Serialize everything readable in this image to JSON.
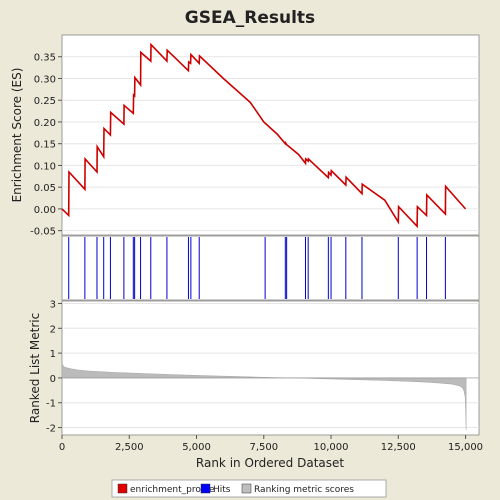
{
  "chart_data": [
    {
      "type": "line",
      "title": "GSEA_Results",
      "ylabel": "Enrichment Score (ES)",
      "xlim": [
        0,
        15500
      ],
      "ylim": [
        -0.06,
        0.4
      ],
      "yticks": [
        -0.05,
        0.0,
        0.05,
        0.1,
        0.15,
        0.2,
        0.25,
        0.3,
        0.35
      ],
      "ytick_labels": [
        "-0.05",
        "0.00",
        "0.05",
        "0.10",
        "0.15",
        "0.20",
        "0.25",
        "0.30",
        "0.35"
      ],
      "grid": true,
      "series": [
        {
          "name": "enrichment_profile",
          "color": "#cc0000",
          "x": [
            0,
            250,
            260,
            850,
            860,
            1300,
            1310,
            1550,
            1560,
            1800,
            1810,
            2300,
            2310,
            2650,
            2660,
            2700,
            2710,
            2920,
            2930,
            3300,
            3310,
            3900,
            3910,
            4700,
            4710,
            4780,
            4790,
            5100,
            5110,
            6000,
            7000,
            7500,
            8000,
            8300,
            8310,
            8350,
            8800,
            9050,
            9060,
            9150,
            9160,
            9900,
            9910,
            10000,
            10010,
            10550,
            10560,
            11150,
            11160,
            12000,
            12500,
            12510,
            13200,
            13210,
            13550,
            13560,
            14250,
            14260,
            15000
          ],
          "y": [
            0.0,
            -0.015,
            0.085,
            0.045,
            0.115,
            0.085,
            0.143,
            0.12,
            0.185,
            0.17,
            0.222,
            0.195,
            0.238,
            0.22,
            0.262,
            0.26,
            0.302,
            0.285,
            0.36,
            0.34,
            0.378,
            0.34,
            0.365,
            0.318,
            0.338,
            0.335,
            0.355,
            0.335,
            0.352,
            0.3,
            0.245,
            0.2,
            0.172,
            0.15,
            0.152,
            0.148,
            0.125,
            0.105,
            0.115,
            0.11,
            0.115,
            0.072,
            0.084,
            0.078,
            0.088,
            0.055,
            0.073,
            0.035,
            0.057,
            0.02,
            -0.03,
            0.005,
            -0.04,
            0.005,
            -0.015,
            0.032,
            -0.012,
            0.052,
            0.0
          ]
        }
      ]
    },
    {
      "type": "scatter",
      "series": [
        {
          "name": "Hits",
          "color": "#0000cc",
          "x": [
            250,
            850,
            1300,
            1550,
            1800,
            2300,
            2650,
            2700,
            2920,
            3300,
            3900,
            4700,
            4790,
            5100,
            7550,
            8300,
            8350,
            9050,
            9150,
            9900,
            10000,
            10550,
            11150,
            12500,
            13200,
            13550,
            14250
          ]
        }
      ]
    },
    {
      "type": "area",
      "ylabel": "Ranked List Metric",
      "xlabel": "Rank in Ordered Dataset",
      "xlim": [
        0,
        15500
      ],
      "ylim": [
        -2.3,
        3.1
      ],
      "xticks": [
        0,
        2500,
        5000,
        7500,
        10000,
        12500,
        15000
      ],
      "xtick_labels": [
        "0",
        "2,500",
        "5,000",
        "7,500",
        "10,000",
        "12,500",
        "15,000"
      ],
      "yticks": [
        -2,
        -1,
        0,
        1,
        2,
        3
      ],
      "ytick_labels": [
        "-2",
        "-1",
        "0",
        "1",
        "2",
        "3"
      ],
      "grid": true,
      "series": [
        {
          "name": "Ranking metric scores",
          "color": "#bbbbbb",
          "x": [
            0,
            30,
            100,
            300,
            600,
            1000,
            2000,
            3000,
            4000,
            5000,
            6000,
            7000,
            8000,
            8600,
            9000,
            10000,
            11000,
            12000,
            13000,
            13500,
            14000,
            14500,
            14800,
            14900,
            14950,
            14990,
            15010,
            15020
          ],
          "y": [
            0.6,
            0.5,
            0.43,
            0.37,
            0.32,
            0.28,
            0.22,
            0.18,
            0.14,
            0.1,
            0.07,
            0.04,
            0.01,
            0.0,
            -0.01,
            -0.04,
            -0.07,
            -0.1,
            -0.14,
            -0.17,
            -0.2,
            -0.25,
            -0.33,
            -0.42,
            -0.55,
            -0.8,
            -1.5,
            -2.1
          ]
        }
      ]
    }
  ],
  "legend": {
    "placement": "bottom",
    "items": [
      {
        "label": "enrichment_profile",
        "color": "#e00000"
      },
      {
        "label": "Hits",
        "color": "#0000ff"
      },
      {
        "label": "Ranking metric scores",
        "color": "#bebebe"
      }
    ]
  }
}
